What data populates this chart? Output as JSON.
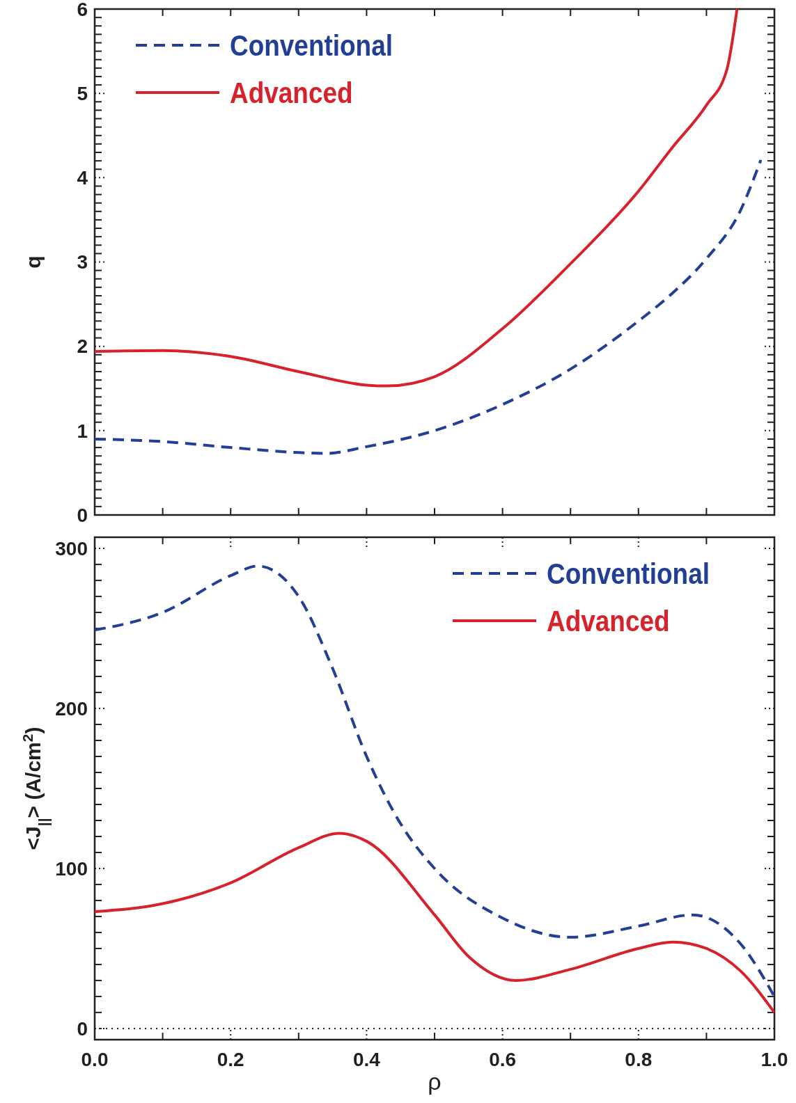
{
  "chart_data": [
    {
      "type": "line",
      "ylabel": "q",
      "legend": "top left",
      "tick_labels": "y",
      "xlim": [
        0,
        1
      ],
      "ylim": [
        0,
        6
      ],
      "xticks": [
        {
          "value": 0,
          "label": null
        },
        {
          "value": 0.1,
          "label": null
        },
        {
          "value": 0.2,
          "label": null
        },
        {
          "value": 0.3,
          "label": null
        },
        {
          "value": 0.4,
          "label": null
        },
        {
          "value": 0.5,
          "label": null
        },
        {
          "value": 0.6,
          "label": null
        },
        {
          "value": 0.7,
          "label": null
        },
        {
          "value": 0.8,
          "label": null
        },
        {
          "value": 0.9,
          "label": null
        },
        {
          "value": 1,
          "label": null
        }
      ],
      "yticks": [
        0,
        {
          "value": 0.1,
          "label": null
        },
        {
          "value": 0.2,
          "label": null
        },
        {
          "value": 0.3,
          "label": null
        },
        {
          "value": 0.4,
          "label": null
        },
        {
          "value": 0.5,
          "label": null
        },
        {
          "value": 0.6,
          "label": null
        },
        {
          "value": 0.7,
          "label": null
        },
        {
          "value": 0.8,
          "label": null
        },
        {
          "value": 0.9,
          "label": null
        },
        1,
        {
          "value": 1.1,
          "label": null
        },
        {
          "value": 1.2,
          "label": null
        },
        {
          "value": 1.3,
          "label": null
        },
        {
          "value": 1.4,
          "label": null
        },
        {
          "value": 1.5,
          "label": null
        },
        {
          "value": 1.6,
          "label": null
        },
        {
          "value": 1.7,
          "label": null
        },
        {
          "value": 1.8,
          "label": null
        },
        {
          "value": 1.9,
          "label": null
        },
        2,
        {
          "value": 2.1,
          "label": null
        },
        {
          "value": 2.2,
          "label": null
        },
        {
          "value": 2.3,
          "label": null
        },
        {
          "value": 2.4,
          "label": null
        },
        {
          "value": 2.5,
          "label": null
        },
        {
          "value": 2.6,
          "label": null
        },
        {
          "value": 2.7,
          "label": null
        },
        {
          "value": 2.8,
          "label": null
        },
        {
          "value": 2.9,
          "label": null
        },
        3,
        {
          "value": 3.1,
          "label": null
        },
        {
          "value": 3.2,
          "label": null
        },
        {
          "value": 3.3,
          "label": null
        },
        {
          "value": 3.4,
          "label": null
        },
        {
          "value": 3.5,
          "label": null
        },
        {
          "value": 3.6,
          "label": null
        },
        {
          "value": 3.7,
          "label": null
        },
        {
          "value": 3.8,
          "label": null
        },
        {
          "value": 3.9,
          "label": null
        },
        4,
        {
          "value": 4.1,
          "label": null
        },
        {
          "value": 4.2,
          "label": null
        },
        {
          "value": 4.3,
          "label": null
        },
        {
          "value": 4.4,
          "label": null
        },
        {
          "value": 4.5,
          "label": null
        },
        {
          "value": 4.6,
          "label": null
        },
        {
          "value": 4.7,
          "label": null
        },
        {
          "value": 4.8,
          "label": null
        },
        {
          "value": 4.9,
          "label": null
        },
        5,
        {
          "value": 5.1,
          "label": null
        },
        {
          "value": 5.2,
          "label": null
        },
        {
          "value": 5.3,
          "label": null
        },
        {
          "value": 5.4,
          "label": null
        },
        {
          "value": 5.5,
          "label": null
        },
        {
          "value": 5.6,
          "label": null
        },
        {
          "value": 5.7,
          "label": null
        },
        {
          "value": 5.8,
          "label": null
        },
        {
          "value": 5.9,
          "label": null
        },
        6
      ],
      "series": [
        {
          "name": "Conventional",
          "color": "#233f95",
          "line_style": "dashed",
          "x": [
            0,
            0.1,
            0.2,
            0.3,
            0.34,
            0.4,
            0.5,
            0.6,
            0.7,
            0.8,
            0.85,
            0.9,
            0.95,
            0.98
          ],
          "values": [
            0.9,
            0.87,
            0.8,
            0.74,
            0.73,
            0.81,
            1.0,
            1.31,
            1.73,
            2.3,
            2.63,
            3.04,
            3.61,
            4.21
          ]
        },
        {
          "name": "Advanced",
          "color": "#d8222b",
          "line_style": "solid",
          "x": [
            0,
            0.1,
            0.2,
            0.3,
            0.4,
            0.43,
            0.5,
            0.6,
            0.7,
            0.8,
            0.85,
            0.9,
            0.93,
            0.945
          ],
          "values": [
            1.94,
            1.95,
            1.88,
            1.7,
            1.54,
            1.53,
            1.64,
            2.21,
            2.98,
            3.84,
            4.36,
            4.86,
            5.28,
            6.0
          ]
        }
      ]
    },
    {
      "type": "line",
      "xlabel": "ρ",
      "ylabel": "<J$_{||}$> (A/cm$^{2}$)",
      "legend": "top right",
      "xlim": [
        0,
        1
      ],
      "ylim": [
        -7,
        307
      ],
      "xticks": [
        {
          "value": 0,
          "label": "0.0"
        },
        {
          "value": 0.1,
          "label": null
        },
        {
          "value": 0.2,
          "label": "0.2"
        },
        {
          "value": 0.3,
          "label": null
        },
        {
          "value": 0.4,
          "label": "0.4"
        },
        {
          "value": 0.5,
          "label": null
        },
        {
          "value": 0.6,
          "label": "0.6"
        },
        {
          "value": 0.7,
          "label": null
        },
        {
          "value": 0.8,
          "label": "0.8"
        },
        {
          "value": 0.9,
          "label": null
        },
        {
          "value": 1,
          "label": "1.0"
        }
      ],
      "yticks": [
        0,
        {
          "value": 10,
          "label": null
        },
        {
          "value": 20,
          "label": null
        },
        {
          "value": 30,
          "label": null
        },
        {
          "value": 40,
          "label": null
        },
        {
          "value": 50,
          "label": null
        },
        {
          "value": 60,
          "label": null
        },
        {
          "value": 70,
          "label": null
        },
        {
          "value": 80,
          "label": null
        },
        {
          "value": 90,
          "label": null
        },
        100,
        {
          "value": 110,
          "label": null
        },
        {
          "value": 120,
          "label": null
        },
        {
          "value": 130,
          "label": null
        },
        {
          "value": 140,
          "label": null
        },
        {
          "value": 150,
          "label": null
        },
        {
          "value": 160,
          "label": null
        },
        {
          "value": 170,
          "label": null
        },
        {
          "value": 180,
          "label": null
        },
        {
          "value": 190,
          "label": null
        },
        200,
        {
          "value": 210,
          "label": null
        },
        {
          "value": 220,
          "label": null
        },
        {
          "value": 230,
          "label": null
        },
        {
          "value": 240,
          "label": null
        },
        {
          "value": 250,
          "label": null
        },
        {
          "value": 260,
          "label": null
        },
        {
          "value": 270,
          "label": null
        },
        {
          "value": 280,
          "label": null
        },
        {
          "value": 290,
          "label": null
        },
        300
      ],
      "ref_lines": [
        {
          "axis": "y",
          "value": 0,
          "line_style": "dotted",
          "color": "#231f20"
        }
      ],
      "series": [
        {
          "name": "Conventional",
          "color": "#233f95",
          "line_style": "dashed",
          "x": [
            0,
            0.1,
            0.2,
            0.24,
            0.3,
            0.35,
            0.4,
            0.45,
            0.5,
            0.6,
            0.7,
            0.8,
            0.88,
            0.95,
            1.0
          ],
          "values": [
            249,
            260,
            283,
            289,
            270,
            225,
            170,
            128,
            100,
            69,
            57,
            64,
            71,
            53,
            20
          ]
        },
        {
          "name": "Advanced",
          "color": "#d8222b",
          "line_style": "solid",
          "x": [
            0,
            0.1,
            0.2,
            0.3,
            0.36,
            0.4,
            0.5,
            0.55,
            0.62,
            0.7,
            0.8,
            0.85,
            0.9,
            0.95,
            1.0
          ],
          "values": [
            73,
            78,
            91,
            113,
            122,
            117,
            71,
            45,
            30,
            37,
            50,
            54,
            50,
            36,
            10
          ]
        }
      ]
    }
  ]
}
